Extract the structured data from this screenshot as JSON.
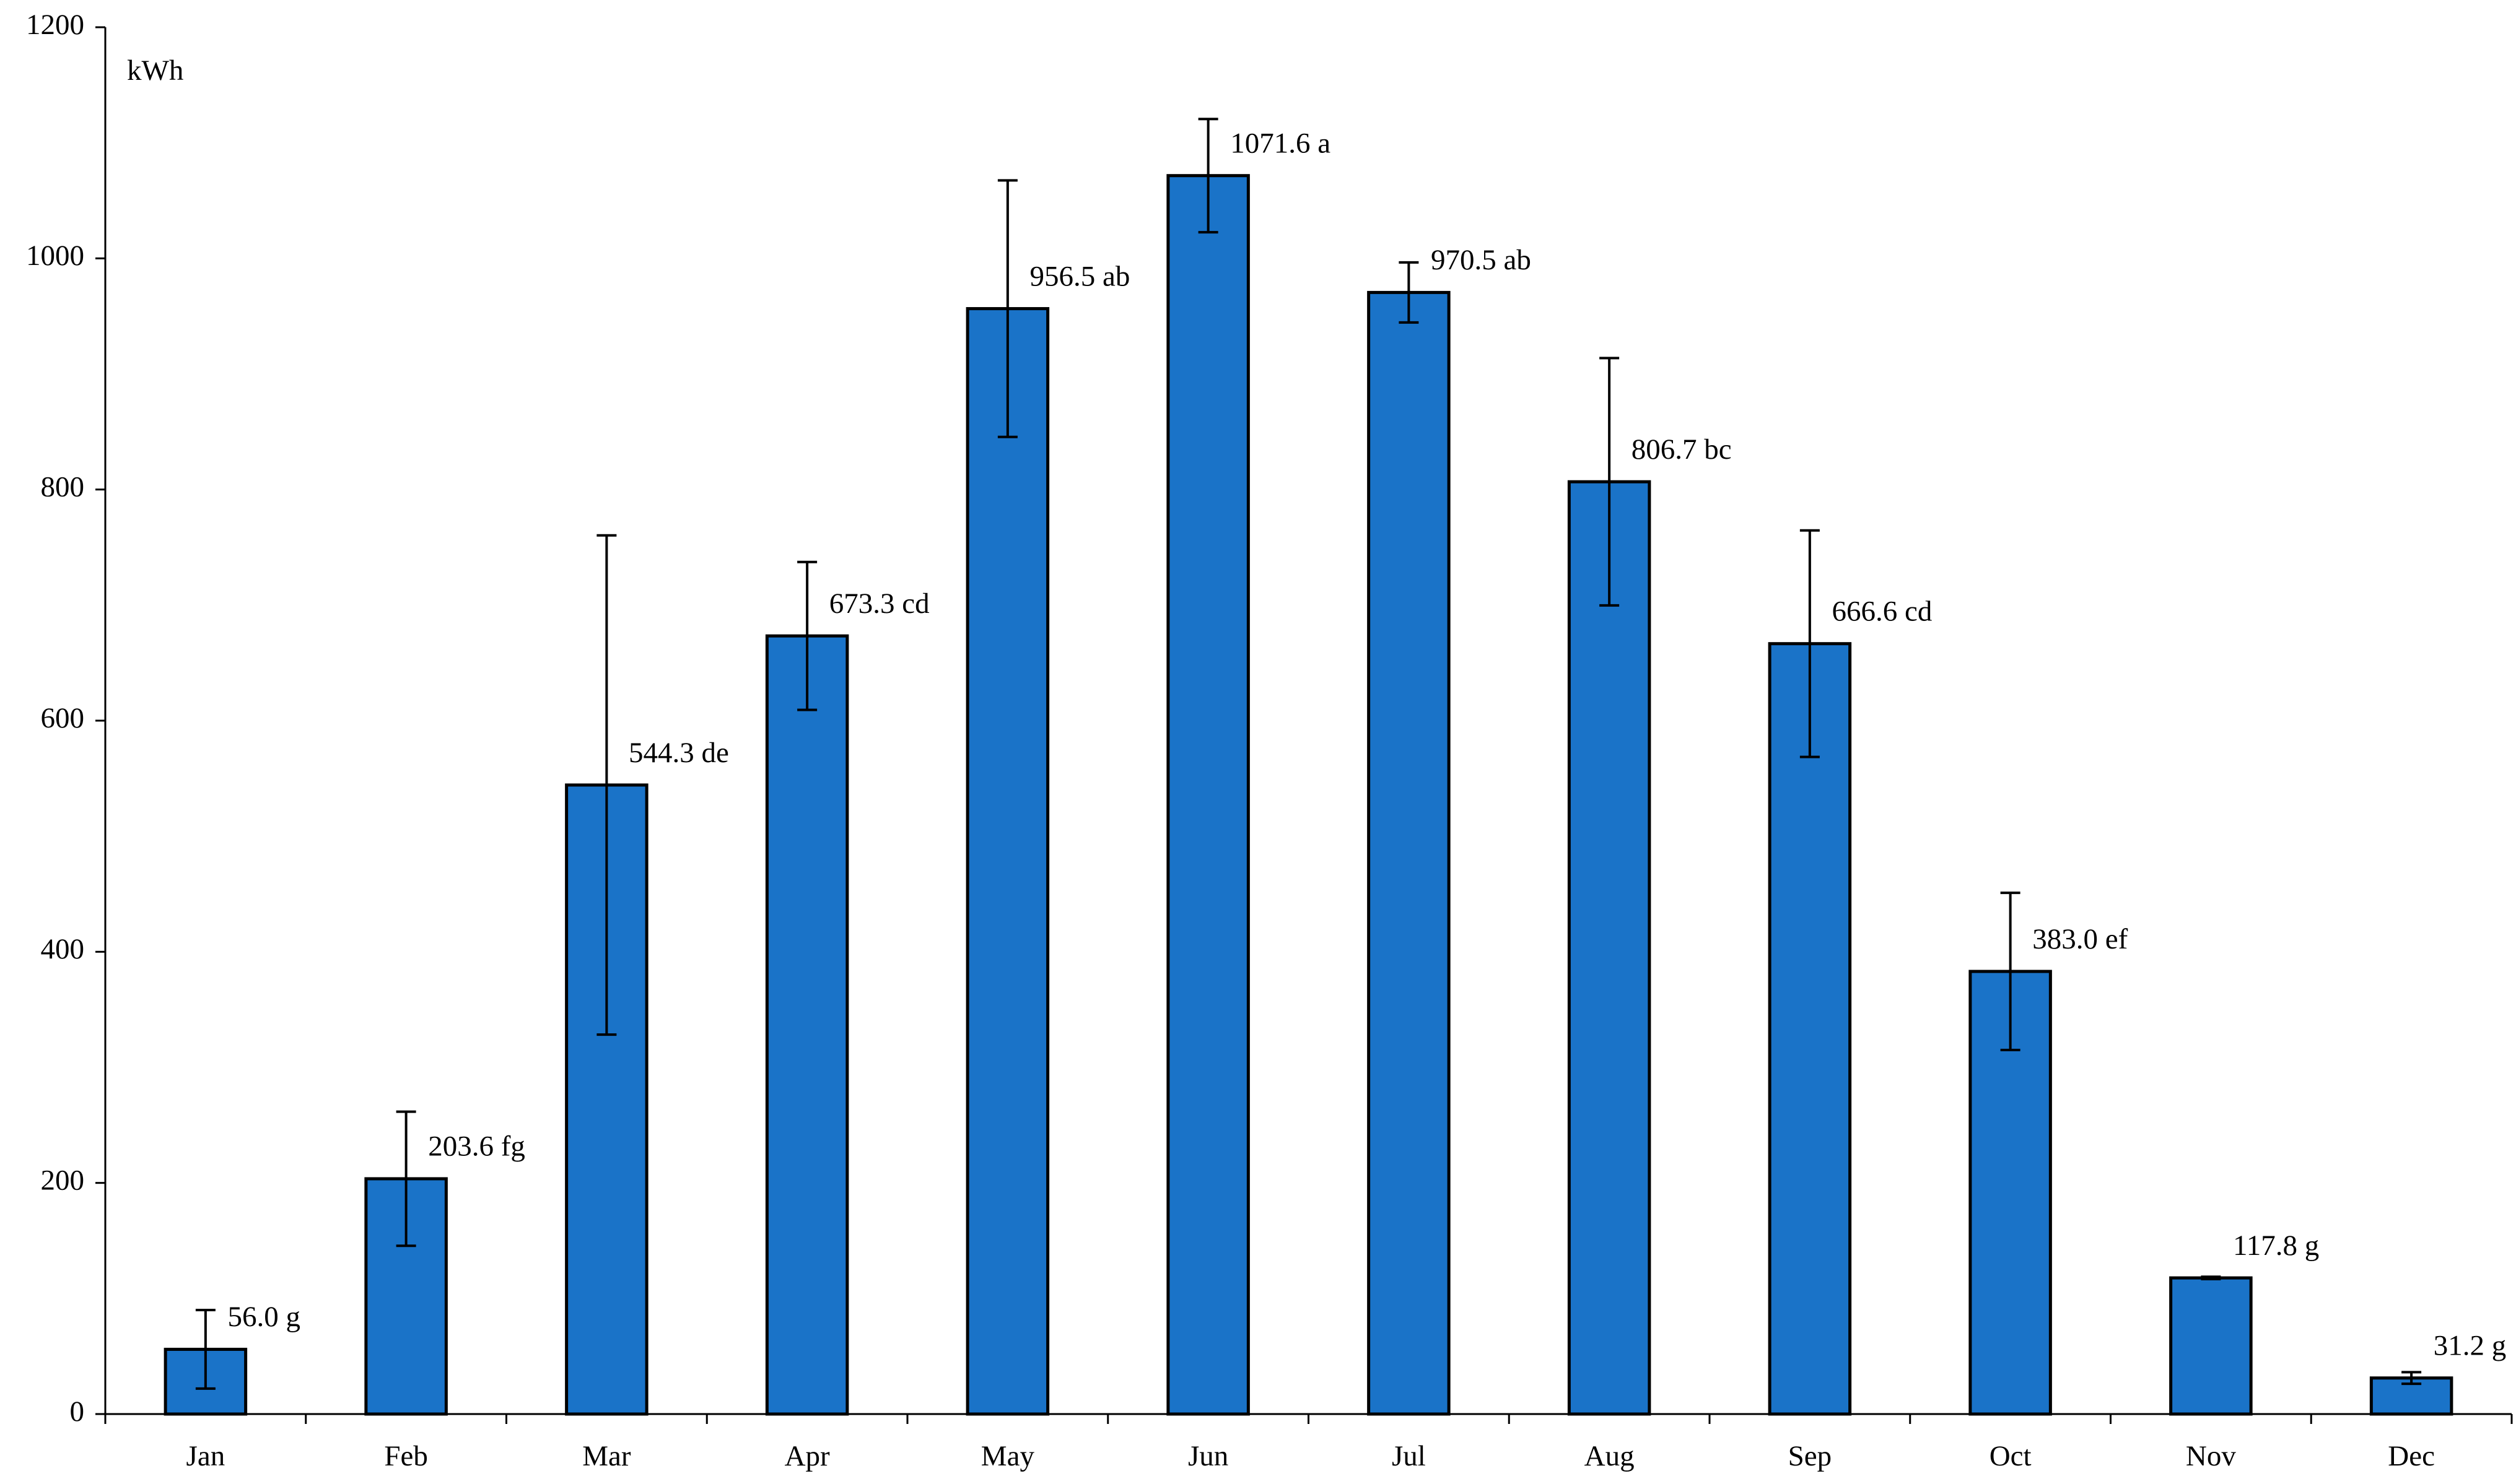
{
  "chart_data": {
    "type": "bar",
    "y_axis_label": "kWh",
    "categories": [
      "Jan",
      "Feb",
      "Mar",
      "Apr",
      "May",
      "Jun",
      "Jul",
      "Aug",
      "Sep",
      "Oct",
      "Nov",
      "Dec"
    ],
    "values": [
      56.0,
      203.6,
      544.3,
      673.3,
      956.5,
      1071.6,
      970.5,
      806.7,
      666.6,
      383.0,
      117.8,
      31.2
    ],
    "value_labels": [
      "56.0 g",
      "203.6 fg",
      "544.3 de",
      "673.3 cd",
      "956.5 ab",
      "1071.6 a",
      "970.5 ab",
      "806.7 bc",
      "666.6 cd",
      "383.0 ef",
      "117.8 g",
      "31.2 g"
    ],
    "errors": [
      34,
      58,
      216,
      64,
      111,
      49,
      26,
      107,
      98,
      68,
      1,
      5
    ],
    "color": "#1a73c8",
    "ylim": [
      0,
      1200
    ],
    "yticks": [
      0,
      200,
      400,
      600,
      800,
      1000,
      1200
    ],
    "grid": false
  }
}
